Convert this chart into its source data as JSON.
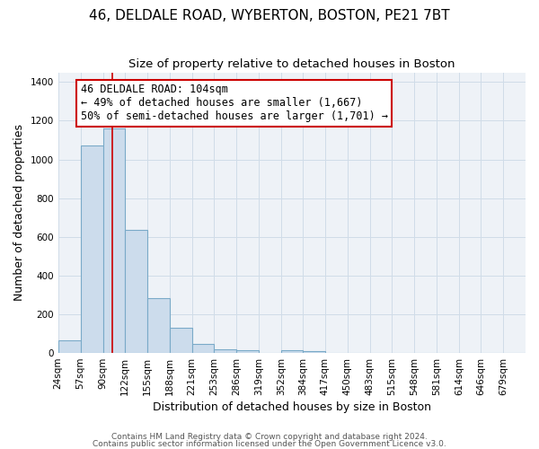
{
  "title": "46, DELDALE ROAD, WYBERTON, BOSTON, PE21 7BT",
  "subtitle": "Size of property relative to detached houses in Boston",
  "xlabel": "Distribution of detached houses by size in Boston",
  "ylabel": "Number of detached properties",
  "bin_labels": [
    "24sqm",
    "57sqm",
    "90sqm",
    "122sqm",
    "155sqm",
    "188sqm",
    "221sqm",
    "253sqm",
    "286sqm",
    "319sqm",
    "352sqm",
    "384sqm",
    "417sqm",
    "450sqm",
    "483sqm",
    "515sqm",
    "548sqm",
    "581sqm",
    "614sqm",
    "646sqm",
    "679sqm"
  ],
  "bin_edges": [
    24,
    57,
    90,
    122,
    155,
    188,
    221,
    253,
    286,
    319,
    352,
    384,
    417,
    450,
    483,
    515,
    548,
    581,
    614,
    646,
    679,
    712
  ],
  "bar_values": [
    65,
    1070,
    1160,
    635,
    285,
    130,
    45,
    20,
    15,
    0,
    15,
    10,
    0,
    0,
    0,
    0,
    0,
    0,
    0,
    0,
    0
  ],
  "bar_color": "#ccdcec",
  "bar_edge_color": "#7aaac8",
  "vline_x": 104,
  "vline_color": "#cc0000",
  "ylim": [
    0,
    1450
  ],
  "yticks": [
    0,
    200,
    400,
    600,
    800,
    1000,
    1200,
    1400
  ],
  "annotation_line1": "46 DELDALE ROAD: 104sqm",
  "annotation_line2": "← 49% of detached houses are smaller (1,667)",
  "annotation_line3": "50% of semi-detached houses are larger (1,701) →",
  "footer1": "Contains HM Land Registry data © Crown copyright and database right 2024.",
  "footer2": "Contains public sector information licensed under the Open Government Licence v3.0.",
  "bg_color": "#eef2f7",
  "grid_color": "#d0dce8",
  "title_fontsize": 11,
  "subtitle_fontsize": 9.5,
  "axis_label_fontsize": 9,
  "tick_fontsize": 7.5,
  "annotation_fontsize": 8.5,
  "footer_fontsize": 6.5
}
